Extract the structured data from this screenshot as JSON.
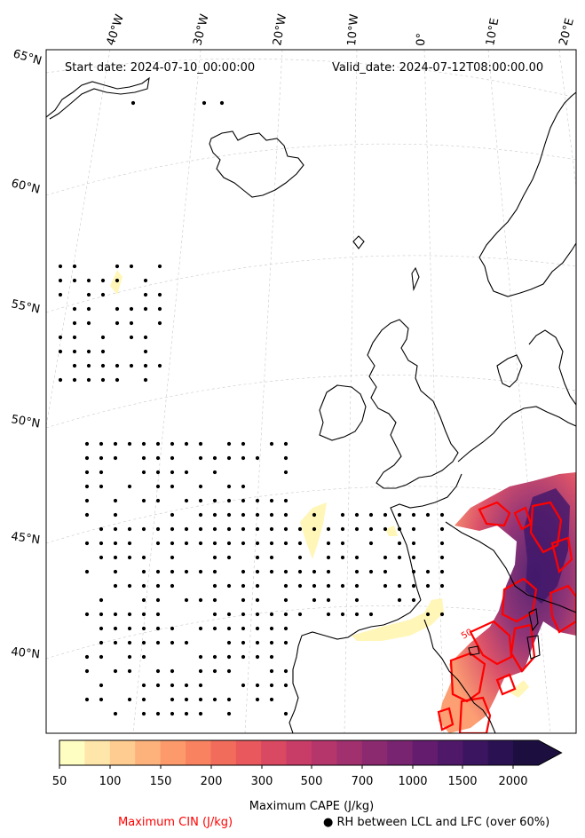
{
  "header": {
    "start_date": "Start date: 2024-07-10_00:00:00",
    "valid_date": "Valid_date: 2024-07-12T08:00:00.00"
  },
  "map": {
    "lon_labels": [
      "40°W",
      "30°W",
      "20°W",
      "10°W",
      "0°",
      "10°E",
      "20°E"
    ],
    "lat_labels": [
      "65°N",
      "60°N",
      "55°N",
      "50°N",
      "45°N",
      "40°N"
    ]
  },
  "colorbar": {
    "label": "Maximum CAPE (J/kg)",
    "ticks": [
      "50",
      "100",
      "150",
      "200",
      "300",
      "500",
      "700",
      "1000",
      "1500",
      "2000"
    ],
    "colors": [
      "#fffec2",
      "#fee5a9",
      "#fecb90",
      "#fdb27c",
      "#fc9a6c",
      "#f98360",
      "#f26c5b",
      "#e8585c",
      "#d94961",
      "#c73d67",
      "#b4366b",
      "#a0306e",
      "#8c2a70",
      "#782470",
      "#641d6e",
      "#501869",
      "#3c1560",
      "#2a1152",
      "#1c0f40"
    ]
  },
  "legend": {
    "cin_label": "Maximum CIN (J/kg)",
    "cin_color": "#ff0000",
    "rh_label": "● RH between LCL and LFC (over 60%)"
  },
  "contour_label": "50"
}
